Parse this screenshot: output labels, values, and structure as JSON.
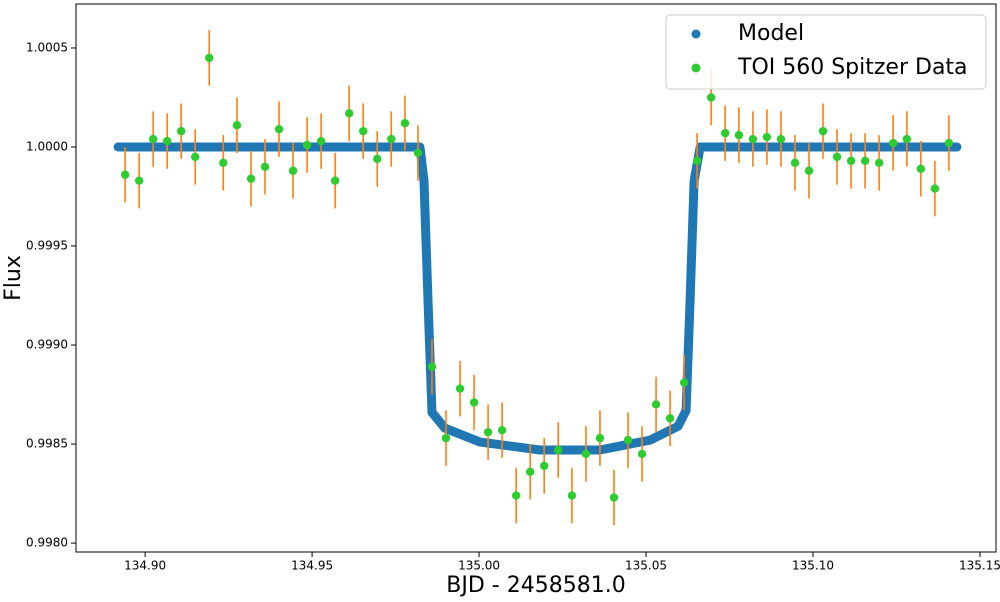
{
  "chart_data": {
    "type": "scatter",
    "xlabel": "BJD - 2458581.0",
    "ylabel": "Flux",
    "xlim": [
      134.8793,
      135.1548
    ],
    "ylim": [
      0.997955,
      1.000722
    ],
    "xticks": [
      {
        "value": 134.9,
        "label": "134.90"
      },
      {
        "value": 134.95,
        "label": "134.95"
      },
      {
        "value": 135.0,
        "label": "135.00"
      },
      {
        "value": 135.05,
        "label": "135.05"
      },
      {
        "value": 135.1,
        "label": "135.10"
      },
      {
        "value": 135.15,
        "label": "135.15"
      }
    ],
    "yticks": [
      {
        "value": 0.998,
        "label": "0.9980"
      },
      {
        "value": 0.9985,
        "label": "0.9985"
      },
      {
        "value": 0.999,
        "label": "0.9990"
      },
      {
        "value": 0.9995,
        "label": "0.9995"
      },
      {
        "value": 1.0,
        "label": "1.0000"
      },
      {
        "value": 1.0005,
        "label": "1.0005"
      }
    ],
    "legend": "upper right",
    "series": [
      {
        "name": "Model",
        "color": "#1f77b4",
        "x": [
          134.8919,
          134.9823,
          134.9835,
          134.9847,
          134.9859,
          134.9898,
          135.0003,
          135.0183,
          135.0362,
          135.0512,
          135.0596,
          135.062,
          135.0632,
          135.0644,
          135.0662,
          135.1431
        ],
        "values": [
          1.0,
          1.0,
          0.99983,
          0.99923,
          0.99866,
          0.99858,
          0.99851,
          0.99847,
          0.99847,
          0.99852,
          0.99859,
          0.99867,
          0.99923,
          0.99983,
          1.0,
          1.0
        ]
      },
      {
        "name": "TOI 560 Spitzer Data",
        "color": "#2ecc2e",
        "error_color": "#ff7f0e",
        "x": [
          134.894,
          134.8982,
          134.9024,
          134.9066,
          134.9108,
          134.915,
          134.9192,
          134.9234,
          134.9275,
          134.9317,
          134.9359,
          134.9401,
          134.9443,
          134.9485,
          134.9527,
          134.9569,
          134.9611,
          134.9653,
          134.9695,
          134.9737,
          134.9778,
          134.9817,
          134.9859,
          134.9901,
          134.9943,
          134.9985,
          135.0027,
          135.0069,
          135.0111,
          135.0153,
          135.0195,
          135.0237,
          135.0278,
          135.032,
          135.0362,
          135.0404,
          135.0446,
          135.0488,
          135.053,
          135.0572,
          135.0614,
          135.0653,
          135.0695,
          135.0737,
          135.0778,
          135.082,
          135.0862,
          135.0904,
          135.0946,
          135.0988,
          135.103,
          135.1072,
          135.1114,
          135.1156,
          135.1198,
          135.124,
          135.1281,
          135.1323,
          135.1365,
          135.1407
        ],
        "values": [
          0.99986,
          0.99983,
          1.00004,
          1.00003,
          1.00008,
          0.99995,
          1.00045,
          0.99992,
          1.00011,
          0.99984,
          0.9999,
          1.00009,
          0.99988,
          1.00001,
          1.00003,
          0.99983,
          1.00017,
          1.00008,
          0.99994,
          1.00004,
          1.00012,
          0.99997,
          0.99889,
          0.99853,
          0.99878,
          0.99871,
          0.99856,
          0.99857,
          0.99824,
          0.99836,
          0.99839,
          0.99847,
          0.99824,
          0.99845,
          0.99853,
          0.99823,
          0.99852,
          0.99845,
          0.9987,
          0.99863,
          0.99881,
          0.99993,
          1.00025,
          1.00007,
          1.00006,
          1.00004,
          1.00005,
          1.00004,
          0.99992,
          0.99988,
          1.00008,
          0.99995,
          0.99993,
          0.99993,
          0.99992,
          1.00002,
          1.00004,
          0.99989,
          0.99979,
          1.00002
        ],
        "errors": [
          0.00014,
          0.00014,
          0.00014,
          0.00014,
          0.00014,
          0.00014,
          0.00014,
          0.00014,
          0.00014,
          0.00014,
          0.00014,
          0.00014,
          0.00014,
          0.00014,
          0.00014,
          0.00014,
          0.00014,
          0.00014,
          0.00014,
          0.00014,
          0.00014,
          0.00014,
          0.00014,
          0.00014,
          0.00014,
          0.00014,
          0.00014,
          0.00014,
          0.00014,
          0.00014,
          0.00014,
          0.00014,
          0.00014,
          0.00014,
          0.00014,
          0.00014,
          0.00014,
          0.00014,
          0.00014,
          0.00014,
          0.00014,
          0.00014,
          0.00014,
          0.00014,
          0.00014,
          0.00014,
          0.00014,
          0.00014,
          0.00014,
          0.00014,
          0.00014,
          0.00014,
          0.00014,
          0.00014,
          0.00014,
          0.00014,
          0.00014,
          0.00014,
          0.00014,
          0.00014
        ]
      }
    ]
  }
}
